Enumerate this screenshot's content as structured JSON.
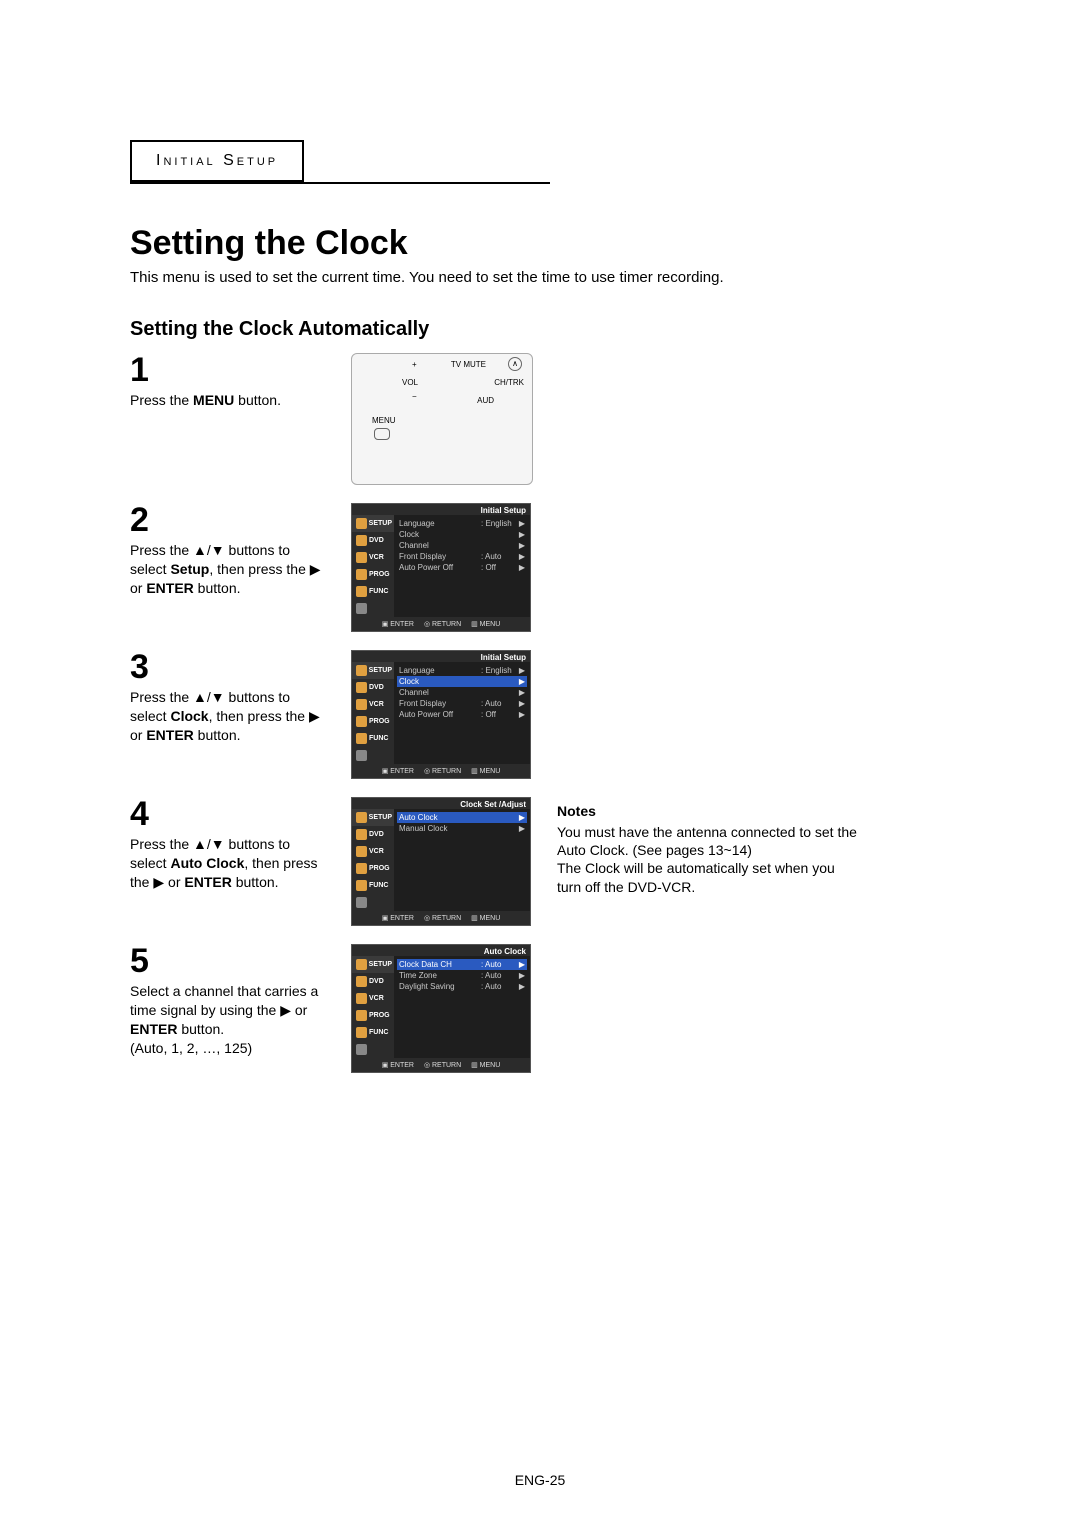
{
  "section_label": "Initial Setup",
  "title": "Setting the Clock",
  "intro": "This menu is used to set the current time. You need to set the time to use timer recording.",
  "subtitle": "Setting the Clock Automatically",
  "page_number": "ENG-25",
  "colors": {
    "tv_bg": "#2b2b2b",
    "tv_main_bg": "#1e1e1e",
    "tv_highlight": "#2a5ac0",
    "tv_icon": "#e0a040",
    "tv_text": "#c8c8c8"
  },
  "steps": {
    "s1": {
      "num": "1",
      "text_pre": "Press the ",
      "bold": "MENU",
      "text_post": " button."
    },
    "s2": {
      "num": "2",
      "line1_pre": "Press the ",
      "line1_arrows": "▲/▼",
      "line1_post": " buttons to",
      "line2_pre": "select ",
      "line2_bold": "Setup",
      "line2_mid": ", then press the ",
      "line2_arrow": "▶",
      "line3_pre": "or ",
      "line3_bold": "ENTER",
      "line3_post": " button."
    },
    "s3": {
      "num": "3",
      "line1_pre": "Press the ",
      "line1_arrows": "▲/▼",
      "line1_post": " buttons to",
      "line2_pre": "select ",
      "line2_bold": "Clock",
      "line2_mid": ", then press the ",
      "line2_arrow": "▶",
      "line3_pre": "or ",
      "line3_bold": "ENTER",
      "line3_post": " button."
    },
    "s4": {
      "num": "4",
      "line1_pre": "Press the ",
      "line1_arrows": "▲/▼",
      "line1_post": " buttons to",
      "line2_pre": "select ",
      "line2_bold": "Auto Clock",
      "line2_mid": ", then press",
      "line3_pre": "the ",
      "line3_arrow": "▶",
      "line3_mid": " or ",
      "line3_bold": "ENTER",
      "line3_post": " button."
    },
    "s5": {
      "num": "5",
      "line1": "Select a channel that carries a",
      "line2_pre": "time signal by using the ",
      "line2_arrow": "▶",
      "line2_post": " or",
      "line3_bold": "ENTER",
      "line3_post": " button.",
      "line4": "(Auto, 1, 2, …, 125)"
    }
  },
  "remote": {
    "tv_mute": "TV MUTE",
    "vol": "VOL",
    "ch": "CH/TRK",
    "aud": "AUD",
    "menu": "MENU",
    "plus": "+",
    "minus": "−",
    "up": "∧"
  },
  "tv_side": [
    "SETUP",
    "DVD",
    "VCR",
    "PROG",
    "FUNC"
  ],
  "tv_step2": {
    "header": "Initial Setup",
    "highlight_index": -1,
    "items": [
      {
        "k": "Language",
        "v": ": English"
      },
      {
        "k": "Clock",
        "v": ""
      },
      {
        "k": "Channel",
        "v": ""
      },
      {
        "k": "Front Display",
        "v": ": Auto"
      },
      {
        "k": "Auto Power Off",
        "v": ": Off"
      }
    ]
  },
  "tv_step3": {
    "header": "Initial Setup",
    "highlight_index": 1,
    "items": [
      {
        "k": "Language",
        "v": ": English"
      },
      {
        "k": "Clock",
        "v": ""
      },
      {
        "k": "Channel",
        "v": ""
      },
      {
        "k": "Front Display",
        "v": ": Auto"
      },
      {
        "k": "Auto Power Off",
        "v": ": Off"
      }
    ]
  },
  "tv_step4": {
    "header": "Clock Set /Adjust",
    "highlight_index": 0,
    "items": [
      {
        "k": "Auto Clock",
        "v": ""
      },
      {
        "k": "Manual Clock",
        "v": ""
      }
    ]
  },
  "tv_step5": {
    "header": "Auto Clock",
    "highlight_index": 0,
    "items": [
      {
        "k": "Clock Data CH",
        "v": ": Auto"
      },
      {
        "k": "Time Zone",
        "v": ": Auto"
      },
      {
        "k": "Daylight Saving",
        "v": ": Auto"
      }
    ]
  },
  "tv_footer": {
    "enter": "ENTER",
    "return": "RETURN",
    "menu": "MENU"
  },
  "notes": {
    "heading": "Notes",
    "line1": "You must have the antenna connected to set the Auto Clock. (See pages 13~14)",
    "line2": "The Clock will be automatically set when you turn off the DVD-VCR."
  }
}
